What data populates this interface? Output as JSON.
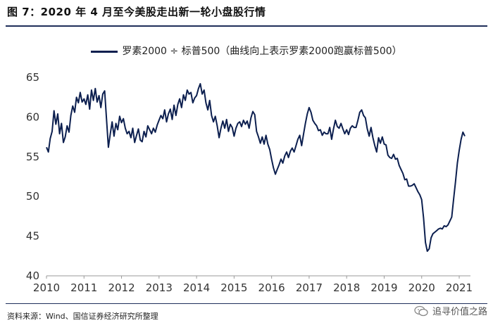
{
  "figure": {
    "title": "图 7：2020 年 4 月至今美股走出新一轮小盘股行情",
    "source": "资料来源：Wind、国信证券经济研究所整理",
    "watermark": "追寻价值之路"
  },
  "colors": {
    "line": "#0c1f4f",
    "rule": "#1f2e5a",
    "axis": "#333333"
  },
  "chart_data": {
    "type": "line",
    "title": "",
    "legend": "罗素2000 ÷ 标普500（曲线向上表示罗素2000跑赢标普500）",
    "legend_position": "top-center",
    "xlabel": "",
    "ylabel": "",
    "xlim": [
      2010.0,
      2021.3
    ],
    "ylim": [
      40,
      65
    ],
    "x_ticks": [
      2010,
      2011,
      2012,
      2013,
      2014,
      2015,
      2016,
      2017,
      2018,
      2019,
      2020,
      2021
    ],
    "y_ticks": [
      40,
      45,
      50,
      55,
      60,
      65
    ],
    "grid": false,
    "series": [
      {
        "name": "罗素2000 ÷ 标普500",
        "x": [
          2010.0,
          2010.05,
          2010.1,
          2010.15,
          2010.2,
          2010.25,
          2010.3,
          2010.35,
          2010.4,
          2010.45,
          2010.5,
          2010.55,
          2010.6,
          2010.65,
          2010.7,
          2010.75,
          2010.8,
          2010.85,
          2010.9,
          2010.95,
          2011.0,
          2011.05,
          2011.1,
          2011.15,
          2011.2,
          2011.25,
          2011.3,
          2011.35,
          2011.4,
          2011.45,
          2011.5,
          2011.55,
          2011.6,
          2011.65,
          2011.7,
          2011.75,
          2011.8,
          2011.85,
          2011.9,
          2011.95,
          2012.0,
          2012.05,
          2012.1,
          2012.15,
          2012.2,
          2012.25,
          2012.3,
          2012.35,
          2012.4,
          2012.45,
          2012.5,
          2012.55,
          2012.6,
          2012.65,
          2012.7,
          2012.75,
          2012.8,
          2012.85,
          2012.9,
          2012.95,
          2013.0,
          2013.05,
          2013.1,
          2013.15,
          2013.2,
          2013.25,
          2013.3,
          2013.35,
          2013.4,
          2013.45,
          2013.5,
          2013.55,
          2013.6,
          2013.65,
          2013.7,
          2013.75,
          2013.8,
          2013.85,
          2013.9,
          2013.95,
          2014.0,
          2014.05,
          2014.1,
          2014.15,
          2014.2,
          2014.25,
          2014.3,
          2014.35,
          2014.4,
          2014.45,
          2014.5,
          2014.55,
          2014.6,
          2014.65,
          2014.7,
          2014.75,
          2014.8,
          2014.85,
          2014.9,
          2014.95,
          2015.0,
          2015.05,
          2015.1,
          2015.15,
          2015.2,
          2015.25,
          2015.3,
          2015.35,
          2015.4,
          2015.45,
          2015.5,
          2015.55,
          2015.6,
          2015.65,
          2015.7,
          2015.75,
          2015.8,
          2015.85,
          2015.9,
          2015.95,
          2016.0,
          2016.05,
          2016.1,
          2016.15,
          2016.2,
          2016.25,
          2016.3,
          2016.35,
          2016.4,
          2016.45,
          2016.5,
          2016.55,
          2016.6,
          2016.65,
          2016.7,
          2016.75,
          2016.8,
          2016.85,
          2016.9,
          2016.95,
          2017.0,
          2017.05,
          2017.1,
          2017.15,
          2017.2,
          2017.25,
          2017.3,
          2017.35,
          2017.4,
          2017.45,
          2017.5,
          2017.55,
          2017.6,
          2017.65,
          2017.7,
          2017.75,
          2017.8,
          2017.85,
          2017.9,
          2017.95,
          2018.0,
          2018.05,
          2018.1,
          2018.15,
          2018.2,
          2018.25,
          2018.3,
          2018.35,
          2018.4,
          2018.45,
          2018.5,
          2018.55,
          2018.6,
          2018.65,
          2018.7,
          2018.75,
          2018.8,
          2018.85,
          2018.9,
          2018.95,
          2019.0,
          2019.05,
          2019.1,
          2019.15,
          2019.2,
          2019.25,
          2019.3,
          2019.35,
          2019.4,
          2019.45,
          2019.5,
          2019.55,
          2019.6,
          2019.65,
          2019.7,
          2019.75,
          2019.8,
          2019.85,
          2019.9,
          2019.95,
          2020.0,
          2020.05,
          2020.1,
          2020.15,
          2020.2,
          2020.25,
          2020.3,
          2020.35,
          2020.4,
          2020.45,
          2020.5,
          2020.55,
          2020.6,
          2020.65,
          2020.7,
          2020.75,
          2020.8,
          2020.85,
          2020.9,
          2020.95,
          2021.0,
          2021.05,
          2021.1,
          2021.15
        ],
        "values": [
          56.2,
          55.6,
          57.3,
          58.2,
          60.8,
          59.1,
          60.4,
          57.9,
          59.2,
          56.8,
          57.5,
          58.9,
          58.1,
          60.2,
          61.4,
          60.6,
          62.5,
          61.8,
          63.1,
          61.9,
          62.3,
          61.6,
          62.8,
          61.0,
          63.4,
          62.1,
          63.6,
          61.9,
          62.7,
          61.2,
          62.9,
          63.3,
          59.8,
          56.2,
          57.9,
          59.4,
          57.6,
          59.2,
          58.4,
          60.1,
          59.3,
          59.8,
          58.6,
          57.9,
          58.2,
          57.4,
          58.6,
          56.8,
          57.7,
          58.5,
          57.1,
          56.9,
          58.2,
          57.5,
          58.9,
          58.4,
          57.9,
          58.6,
          58.1,
          59.0,
          59.6,
          60.2,
          59.8,
          60.9,
          59.4,
          60.4,
          61.0,
          59.7,
          61.5,
          60.2,
          61.6,
          62.3,
          61.2,
          62.8,
          62.1,
          63.4,
          62.9,
          63.1,
          61.8,
          62.4,
          62.7,
          63.6,
          64.2,
          62.9,
          63.4,
          61.8,
          60.9,
          62.1,
          60.2,
          59.4,
          60.1,
          58.9,
          57.4,
          58.6,
          59.5,
          58.6,
          59.7,
          58.2,
          59.1,
          58.7,
          57.6,
          58.6,
          59.2,
          59.4,
          58.8,
          59.6,
          59.1,
          59.5,
          58.6,
          59.9,
          60.7,
          60.3,
          58.2,
          57.5,
          56.7,
          57.5,
          56.6,
          57.7,
          56.6,
          55.9,
          54.7,
          53.6,
          52.8,
          53.4,
          54.0,
          54.7,
          54.2,
          55.1,
          55.6,
          54.9,
          55.7,
          56.1,
          55.6,
          56.4,
          57.2,
          57.7,
          56.4,
          57.8,
          59.2,
          60.4,
          61.2,
          60.6,
          59.6,
          59.2,
          58.9,
          58.3,
          58.4,
          57.7,
          58.1,
          57.9,
          57.9,
          58.7,
          57.2,
          58.5,
          59.6,
          58.8,
          58.6,
          59.2,
          58.5,
          57.9,
          58.4,
          57.8,
          58.6,
          58.9,
          58.7,
          58.7,
          59.6,
          60.6,
          60.9,
          60.2,
          59.9,
          58.5,
          57.6,
          58.7,
          57.4,
          56.4,
          55.6,
          57.4,
          56.7,
          57.5,
          56.6,
          56.5,
          55.2,
          54.9,
          54.8,
          55.3,
          54.7,
          54.8,
          53.9,
          53.4,
          52.9,
          52.1,
          52.2,
          51.3,
          51.3,
          51.4,
          51.6,
          51.1,
          50.6,
          50.2,
          49.6,
          47.3,
          44.2,
          43.1,
          43.4,
          44.8,
          45.3,
          45.5,
          45.7,
          45.9,
          46.0,
          45.9,
          46.3,
          46.2,
          46.4,
          46.9,
          47.4,
          49.6,
          51.8,
          54.2,
          55.8,
          57.2,
          58.1,
          57.6
        ]
      }
    ]
  }
}
